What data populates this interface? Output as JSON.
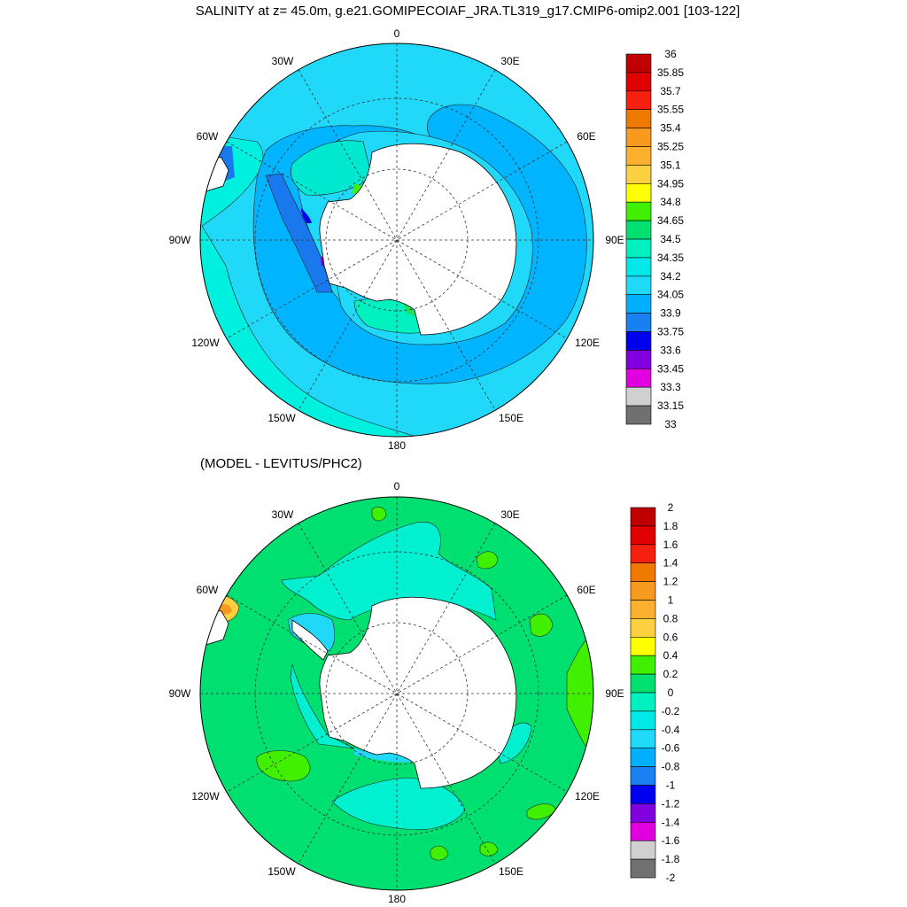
{
  "title": "SALINITY at z=  45.0m, g.e21.GOMIPECOIAF_JRA.TL319_g17.CMIP6-omip2.001 [103-122]",
  "subtitle": "(MODEL - LEVITUS/PHC2)",
  "lon_labels": {
    "top": "0",
    "e30": "30E",
    "e60": "60E",
    "e90": "90E",
    "e120": "120E",
    "e150": "150E",
    "bottom": "180",
    "w150": "150W",
    "w120": "120W",
    "w90": "90W",
    "w60": "60W",
    "w30": "30W"
  },
  "colorbar_top": {
    "labels": [
      "36",
      "35.85",
      "35.7",
      "35.55",
      "35.4",
      "35.25",
      "35.1",
      "34.95",
      "34.8",
      "34.65",
      "34.5",
      "34.35",
      "34.2",
      "34.05",
      "33.9",
      "33.75",
      "33.6",
      "33.45",
      "33.3",
      "33.15",
      "33"
    ],
    "colors": [
      "#c00000",
      "#e00000",
      "#f52010",
      "#f07a00",
      "#f89a20",
      "#fbb030",
      "#fcd040",
      "#ffff00",
      "#40f000",
      "#00e070",
      "#00f0c0",
      "#00e8e8",
      "#20d8f8",
      "#00b0ff",
      "#1880f0",
      "#0000f0",
      "#8000e0",
      "#e000e0",
      "#d0d0d0",
      "#707070"
    ]
  },
  "colorbar_bottom": {
    "labels": [
      "2",
      "1.8",
      "1.6",
      "1.4",
      "1.2",
      "1",
      "0.8",
      "0.6",
      "0.4",
      "0.2",
      "0",
      "-0.2",
      "-0.4",
      "-0.6",
      "-0.8",
      "-1",
      "-1.2",
      "-1.4",
      "-1.6",
      "-1.8",
      "-2"
    ],
    "colors": [
      "#c00000",
      "#e00000",
      "#f52010",
      "#f07a00",
      "#f89a20",
      "#fbb030",
      "#fcd040",
      "#ffff00",
      "#40f000",
      "#00e070",
      "#00f0c0",
      "#00e8e8",
      "#20d8f8",
      "#00b0ff",
      "#1880f0",
      "#0000f0",
      "#8000e0",
      "#e000e0",
      "#d0d0d0",
      "#707070"
    ]
  }
}
